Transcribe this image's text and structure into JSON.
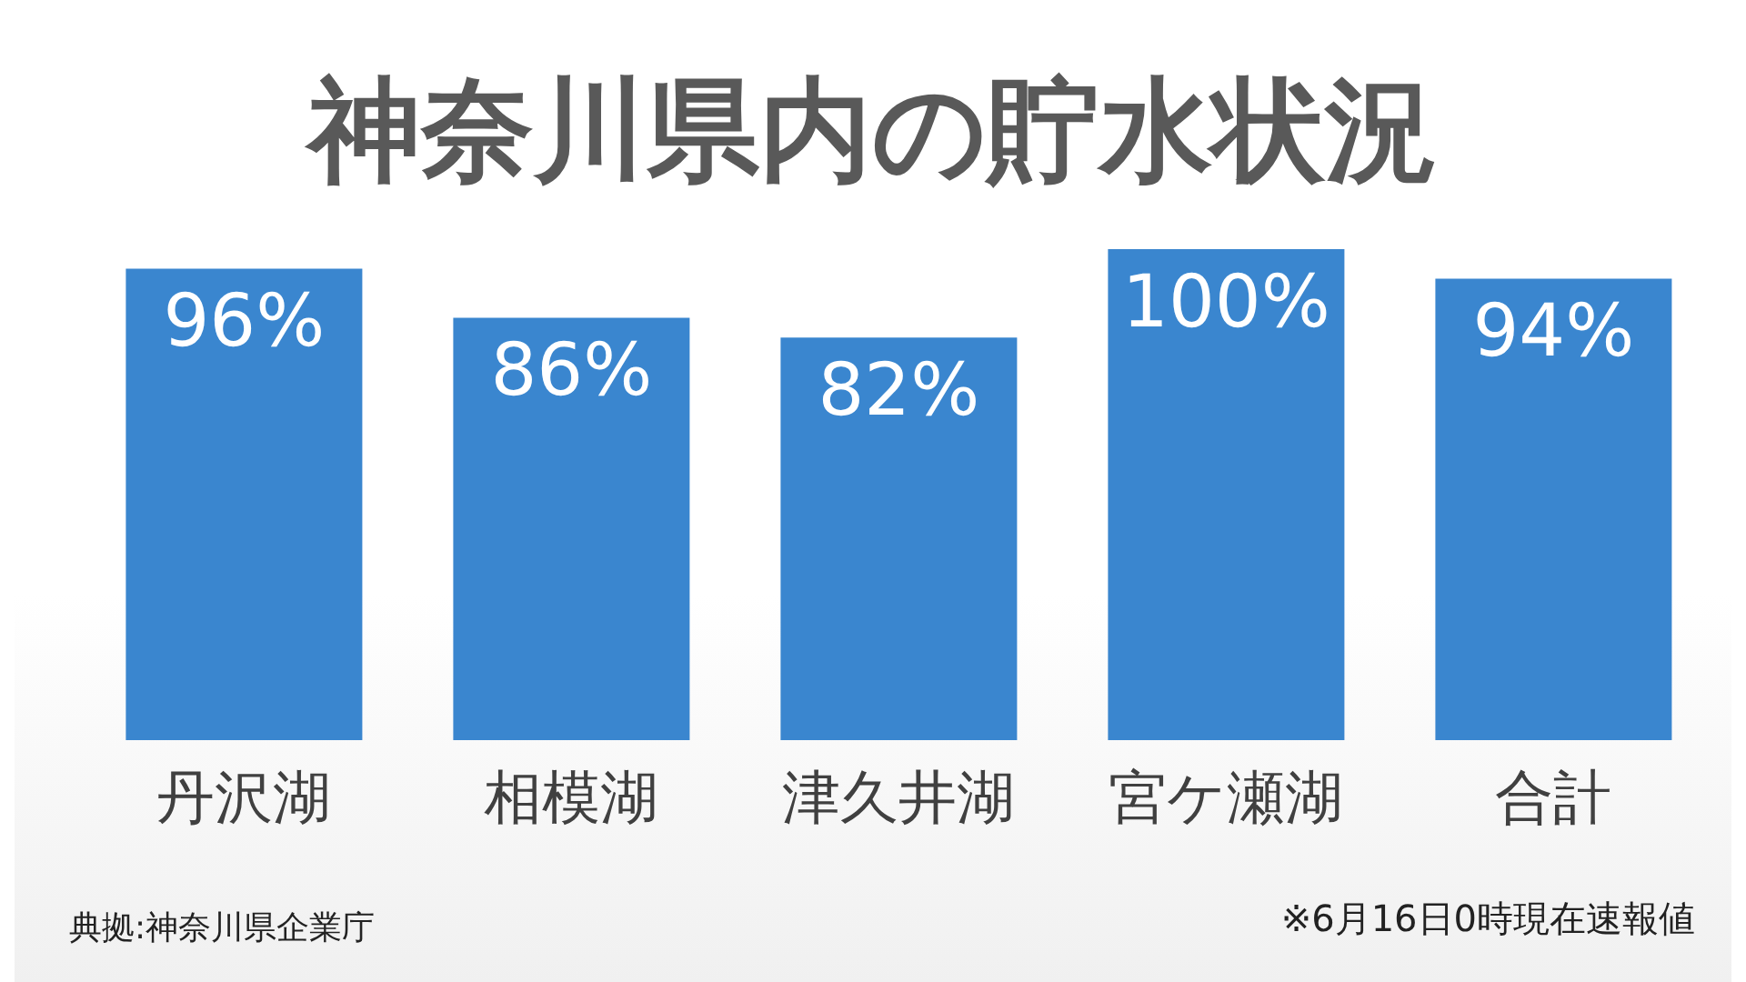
{
  "chart_data": {
    "type": "bar",
    "title": "神奈川県内の貯水状況",
    "categories": [
      "丹沢湖",
      "相模湖",
      "津久井湖",
      "宮ケ瀬湖",
      "合計"
    ],
    "values": [
      96,
      86,
      82,
      100,
      94
    ],
    "value_labels": [
      "96%",
      "86%",
      "82%",
      "100%",
      "94%"
    ],
    "color": "#3a86cf",
    "annotations": [
      "典拠:神奈川県企業庁",
      "※6月16日0時現在速報値"
    ]
  }
}
